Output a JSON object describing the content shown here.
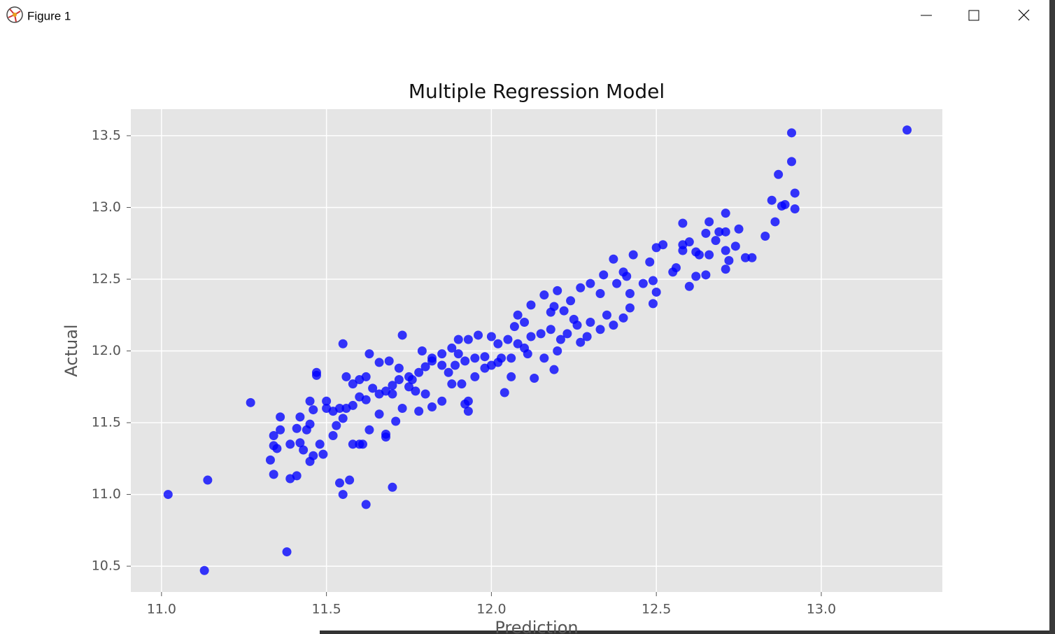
{
  "window": {
    "title": "Figure 1"
  },
  "chart_data": {
    "type": "scatter",
    "title": "Multiple Regression Model",
    "x_label": "Prediction",
    "y_label": "Actual",
    "color": "#0000ff",
    "grid": true,
    "xlim": [
      10.907,
      13.367
    ],
    "ylim": [
      10.32,
      13.685
    ],
    "xticks": [
      {
        "value": 11,
        "label": "11.0"
      },
      11.5,
      {
        "value": 12,
        "label": "12.0"
      },
      12.5,
      {
        "value": 13,
        "label": "13.0"
      }
    ],
    "yticks": [
      10.5,
      {
        "value": 11,
        "label": "11.0"
      },
      11.5,
      {
        "value": 12,
        "label": "12.0"
      },
      12.5,
      {
        "value": 13,
        "label": "13.0"
      },
      13.5
    ],
    "x": [
      11.02,
      11.13,
      11.14,
      11.27,
      11.38,
      11.7,
      11.62,
      11.55,
      11.54,
      11.57,
      11.55,
      11.73,
      13.26,
      12.91,
      12.91,
      12.87,
      12.92,
      12.85,
      12.89,
      12.88,
      12.92,
      12.86,
      12.83,
      12.71,
      12.66,
      12.58,
      12.75,
      12.71,
      12.69,
      12.65,
      12.68,
      12.74,
      12.6,
      12.58,
      12.52,
      12.5,
      12.58,
      12.62,
      12.71,
      12.63,
      12.66,
      12.72,
      12.77,
      12.79,
      12.71,
      12.62,
      12.65,
      12.6,
      12.56,
      12.55,
      12.48,
      12.46,
      12.49,
      12.5,
      12.49,
      12.42,
      12.43,
      12.37,
      12.4,
      12.41,
      12.34,
      12.38,
      12.3,
      12.33,
      12.27,
      12.24,
      12.2,
      12.16,
      12.19,
      12.22,
      12.25,
      12.26,
      12.3,
      12.35,
      12.4,
      12.42,
      12.37,
      12.33,
      12.29,
      12.27,
      12.23,
      12.21,
      12.18,
      12.15,
      12.12,
      12.1,
      12.07,
      12.05,
      12.08,
      12.1,
      12.11,
      12.06,
      12.03,
      12.16,
      12.2,
      12.19,
      12.13,
      12.06,
      12.04,
      12.12,
      12.18,
      12.08,
      12.0,
      12.02,
      11.98,
      11.95,
      11.92,
      11.9,
      11.88,
      11.93,
      11.96,
      11.9,
      11.85,
      11.82,
      11.8,
      11.78,
      11.75,
      11.72,
      11.7,
      11.68,
      11.66,
      11.64,
      11.62,
      11.6,
      11.58,
      11.56,
      11.54,
      11.52,
      11.5,
      11.5,
      11.47,
      11.47,
      11.45,
      11.46,
      11.45,
      11.44,
      11.42,
      11.41,
      11.42,
      11.43,
      11.39,
      11.36,
      11.36,
      11.34,
      11.34,
      11.35,
      11.33,
      11.34,
      11.39,
      11.41,
      11.45,
      11.46,
      11.48,
      11.49,
      11.52,
      11.53,
      11.55,
      11.58,
      11.6,
      11.61,
      11.63,
      11.66,
      11.68,
      11.68,
      11.71,
      11.73,
      11.78,
      11.82,
      11.85,
      11.92,
      11.93,
      11.93,
      11.88,
      11.91,
      11.95,
      11.98,
      11.58,
      11.6,
      11.62,
      11.56,
      11.63,
      11.66,
      11.69,
      11.72,
      11.76,
      11.79,
      11.82,
      11.85,
      11.75,
      11.7,
      11.77,
      11.8,
      11.87,
      11.89,
      12.02,
      12.0
    ],
    "values": [
      11.0,
      10.47,
      11.1,
      11.64,
      10.6,
      11.05,
      10.93,
      11.0,
      11.08,
      11.1,
      12.05,
      12.11,
      13.54,
      13.52,
      13.32,
      13.23,
      13.1,
      13.05,
      13.02,
      13.01,
      12.99,
      12.9,
      12.8,
      12.96,
      12.9,
      12.89,
      12.85,
      12.83,
      12.83,
      12.82,
      12.77,
      12.73,
      12.76,
      12.74,
      12.74,
      12.72,
      12.7,
      12.69,
      12.7,
      12.67,
      12.67,
      12.63,
      12.65,
      12.65,
      12.57,
      12.52,
      12.53,
      12.45,
      12.58,
      12.55,
      12.62,
      12.47,
      12.49,
      12.41,
      12.33,
      12.4,
      12.67,
      12.64,
      12.55,
      12.52,
      12.53,
      12.47,
      12.47,
      12.4,
      12.44,
      12.35,
      12.42,
      12.39,
      12.31,
      12.28,
      12.22,
      12.18,
      12.2,
      12.25,
      12.23,
      12.3,
      12.18,
      12.15,
      12.1,
      12.06,
      12.12,
      12.08,
      12.15,
      12.12,
      12.1,
      12.2,
      12.17,
      12.08,
      12.05,
      12.02,
      11.98,
      11.95,
      11.95,
      11.95,
      12.0,
      11.87,
      11.81,
      11.82,
      11.71,
      12.32,
      12.27,
      12.25,
      12.1,
      12.05,
      11.96,
      11.95,
      11.93,
      11.98,
      12.02,
      12.08,
      12.11,
      12.08,
      11.98,
      11.93,
      11.89,
      11.85,
      11.82,
      11.8,
      11.76,
      11.72,
      11.7,
      11.74,
      11.66,
      11.68,
      11.62,
      11.6,
      11.6,
      11.58,
      11.65,
      11.6,
      11.85,
      11.83,
      11.65,
      11.59,
      11.49,
      11.45,
      11.54,
      11.46,
      11.36,
      11.31,
      11.35,
      11.54,
      11.45,
      11.41,
      11.34,
      11.32,
      11.24,
      11.14,
      11.11,
      11.13,
      11.23,
      11.27,
      11.35,
      11.28,
      11.41,
      11.48,
      11.53,
      11.35,
      11.35,
      11.35,
      11.45,
      11.56,
      11.42,
      11.4,
      11.51,
      11.6,
      11.58,
      11.61,
      11.65,
      11.63,
      11.65,
      11.58,
      11.77,
      11.77,
      11.82,
      11.88,
      11.77,
      11.8,
      11.82,
      11.82,
      11.98,
      11.92,
      11.93,
      11.88,
      11.8,
      12.0,
      11.95,
      11.9,
      11.75,
      11.7,
      11.72,
      11.7,
      11.85,
      11.9,
      11.92,
      11.9
    ]
  }
}
